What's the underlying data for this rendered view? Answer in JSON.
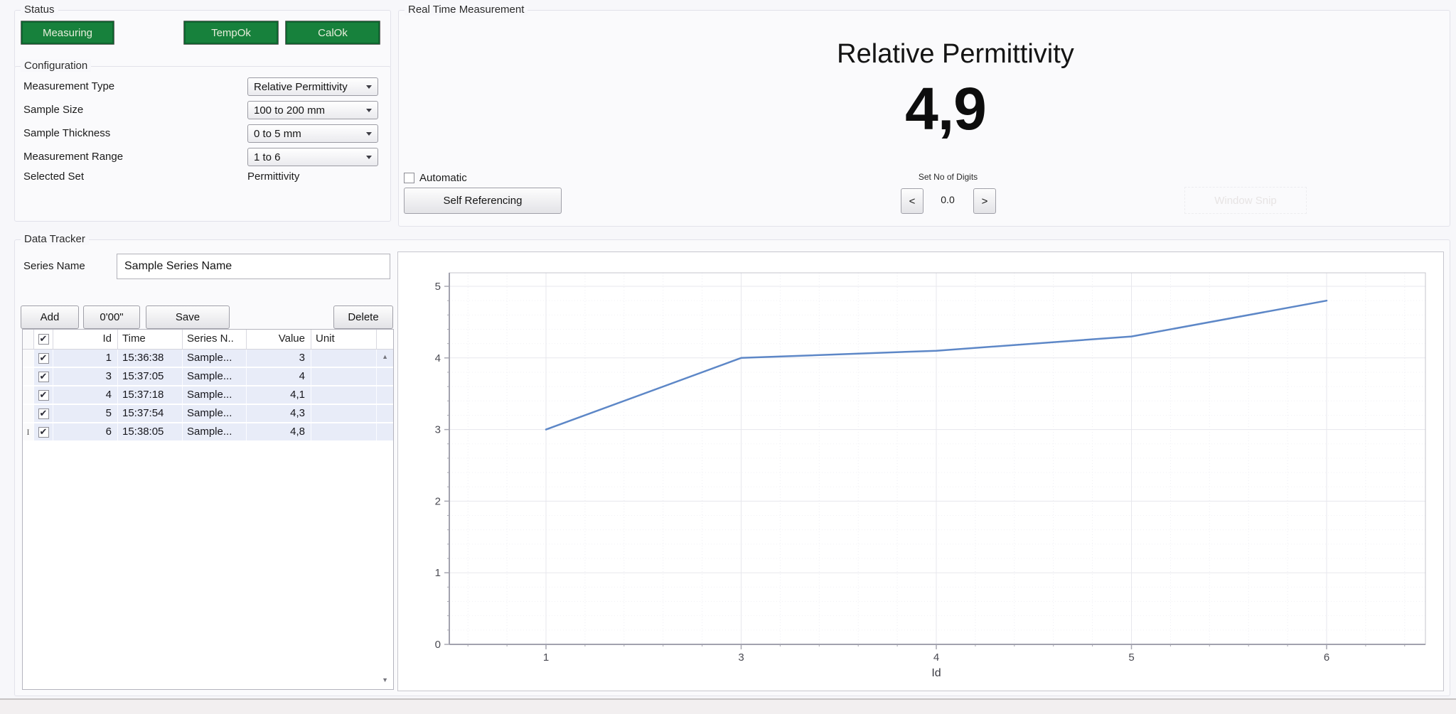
{
  "status": {
    "title": "Status",
    "buttons": [
      {
        "label": "Measuring"
      },
      {
        "label": "TempOk"
      },
      {
        "label": "CalOk"
      }
    ]
  },
  "configuration": {
    "title": "Configuration",
    "fields": [
      {
        "label": "Measurement Type",
        "value": "Relative Permittivity"
      },
      {
        "label": "Sample Size",
        "value": "100 to 200 mm"
      },
      {
        "label": "Sample Thickness",
        "value": "0 to 5 mm"
      },
      {
        "label": "Measurement Range",
        "value": "1 to 6"
      },
      {
        "label": "Selected Set",
        "value": "Permittivity"
      }
    ]
  },
  "real_time": {
    "title": "Real Time Measurement",
    "display_title": "Relative Permittivity",
    "display_value": "4,9",
    "automatic_label": "Automatic",
    "automatic_checked": false,
    "self_referencing_label": "Self Referencing",
    "digits_label": "Set No of Digits",
    "digits_value": "0.0",
    "digits_decrease": "<",
    "digits_increase": ">",
    "ghost_label": "Window Snip"
  },
  "tracker": {
    "title": "Data Tracker",
    "series_name_label": "Series Name",
    "series_name_value": "Sample Series Name",
    "buttons": {
      "add": "Add",
      "timer": "0'00\"",
      "save": "Save",
      "delete": "Delete"
    },
    "table": {
      "columns": [
        "Id",
        "Time",
        "Series N..",
        "Value",
        "Unit"
      ],
      "header_checked": true,
      "rows": [
        {
          "checked": true,
          "id": "1",
          "time": "15:36:38",
          "series": "Sample...",
          "value": "3",
          "unit": ""
        },
        {
          "checked": true,
          "id": "3",
          "time": "15:37:05",
          "series": "Sample...",
          "value": "4",
          "unit": ""
        },
        {
          "checked": true,
          "id": "4",
          "time": "15:37:18",
          "series": "Sample...",
          "value": "4,1",
          "unit": ""
        },
        {
          "checked": true,
          "id": "5",
          "time": "15:37:54",
          "series": "Sample...",
          "value": "4,3",
          "unit": ""
        },
        {
          "checked": true,
          "id": "6",
          "time": "15:38:05",
          "series": "Sample...",
          "value": "4,8",
          "unit": ""
        }
      ]
    }
  },
  "chart_data": {
    "type": "line",
    "x_as_category": true,
    "categories": [
      "1",
      "3",
      "4",
      "5",
      "6"
    ],
    "series": [
      {
        "name": "Sample Series Name",
        "values": [
          3,
          4,
          4.1,
          4.3,
          4.8
        ]
      }
    ],
    "xlabel": "Id",
    "ylabel": "",
    "y_ticks": [
      0,
      1,
      2,
      3,
      4,
      5
    ],
    "ylim": [
      0,
      5.19
    ],
    "grid": true,
    "legend": false,
    "line_color": "#5d87c7"
  },
  "colors": {
    "status_green": "#17813c",
    "row_blue": "#e8ecf8",
    "line_blue": "#5d87c7",
    "panel_bg": "#f7f7fa"
  }
}
